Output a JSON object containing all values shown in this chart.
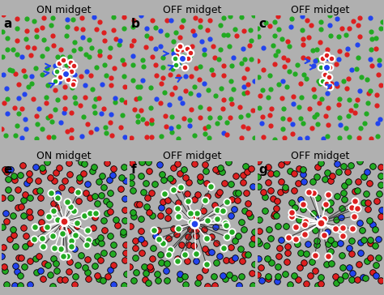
{
  "bg_color": "#7a7a7a",
  "fig_bg": "#b0b0b0",
  "dot_red": "#dd2020",
  "dot_green": "#22aa22",
  "dot_blue": "#2244ee",
  "title_fontsize": 9,
  "label_fontsize": 11,
  "panels_top": [
    "a",
    "b",
    "c"
  ],
  "panels_bot": [
    "e",
    "f",
    "g"
  ],
  "titles_top": [
    "ON midget",
    "OFF midget",
    "OFF midget"
  ],
  "titles_bot": [
    "ON midget",
    "OFF midget",
    "OFF midget"
  ]
}
